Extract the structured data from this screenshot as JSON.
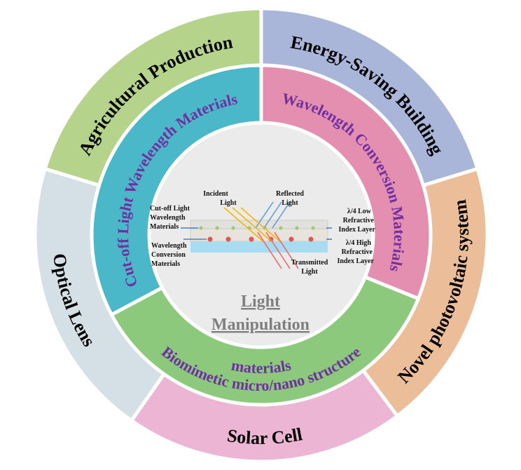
{
  "outer_ring": [
    {
      "label": "Agricultural Production",
      "color": "#b5d38b"
    },
    {
      "label": "Energy-Saving Building",
      "color": "#a9b6da"
    },
    {
      "label": "Novel photovoltaic system",
      "color": "#ebbd98"
    },
    {
      "label": "Solar Cell",
      "color": "#ecb5d3"
    },
    {
      "label": "Optical Lens",
      "color": "#d5dfe6"
    }
  ],
  "middle_ring": [
    {
      "label": "Cut-off Light Wavelength Materials",
      "color": "#4bb8c9"
    },
    {
      "label": "Wavelength Conversion Materials",
      "color": "#e48fb0"
    },
    {
      "label_line1": "Biomimetic micro/nano structure",
      "label_line2": "materials",
      "color": "#8cc97c"
    }
  ],
  "center": {
    "title_line1": "Light",
    "title_line2": "Manipulation",
    "background": "#ebebeb",
    "labels": {
      "incident_1": "Incident",
      "incident_2": "Light",
      "reflected_1": "Reflected",
      "reflected_2": "Light",
      "cutoff_1": "Cut-off Light",
      "cutoff_2": "Wavelength",
      "cutoff_3": "Materials",
      "conv_1": "Wavelength",
      "conv_2": "Conversion",
      "conv_3": "Materials",
      "low_1": "λ/4 Low",
      "low_2": "Refractive",
      "low_3": "Index Layer",
      "high_1": "λ/4 High",
      "high_2": "Refractive",
      "high_3": "Index Layer",
      "trans_1": "Transmitted",
      "trans_2": "Light"
    }
  }
}
